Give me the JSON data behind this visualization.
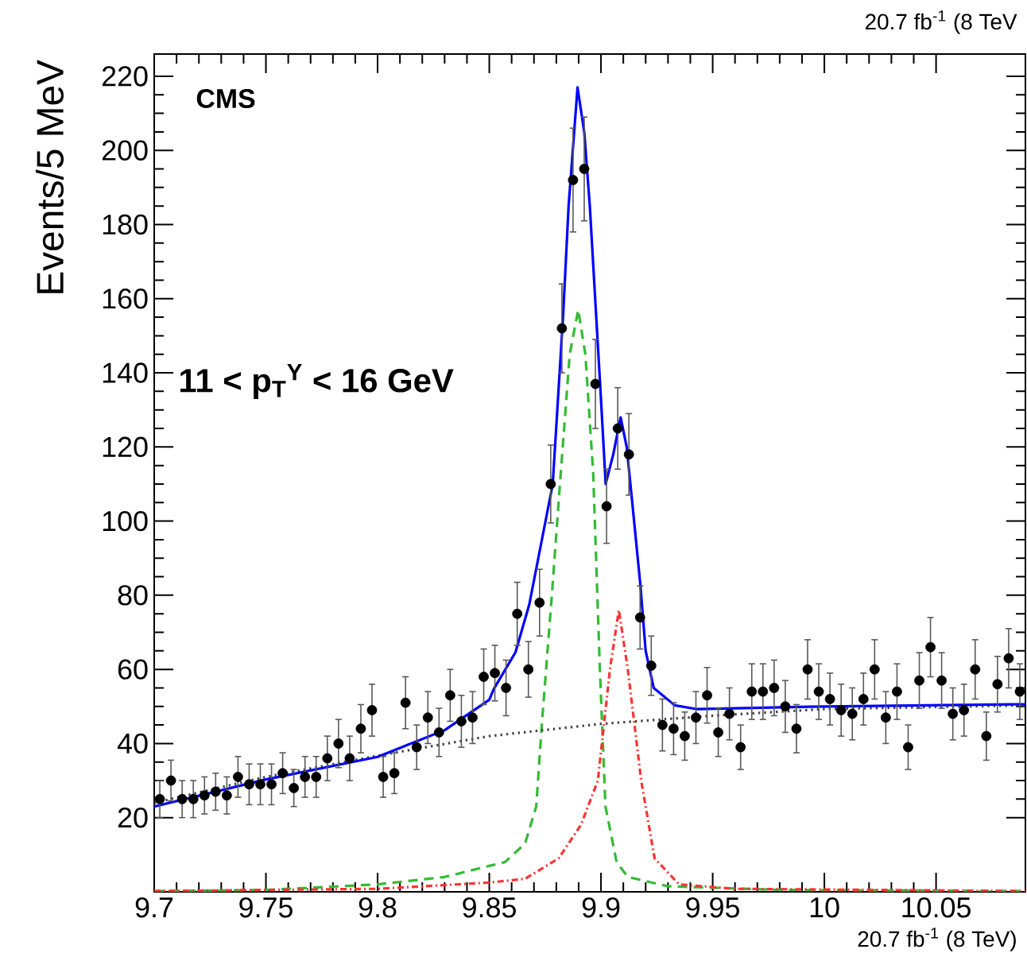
{
  "chart_data": {
    "type": "line",
    "ylabel": "Events/5 MeV",
    "annotations": [
      "CMS",
      "11 < p$_{T}$$^{Υ}$ < 16 GeV",
      "20.7 fb$^{-1}$ (8 TeV",
      "20.7 fb$^{-1}$ (8 TeV)"
    ],
    "xlim": [
      9.7,
      10.09
    ],
    "ylim": [
      0,
      226
    ],
    "xticks": [
      9.7,
      9.75,
      9.8,
      9.85,
      9.9,
      9.95,
      10,
      10.05
    ],
    "yticks": [
      20,
      40,
      60,
      80,
      100,
      120,
      140,
      160,
      180,
      200,
      220
    ],
    "series": [
      {
        "marker": "none",
        "color": "#33bb33",
        "line_style": "dashed",
        "x": [
          9.7,
          9.75,
          9.8,
          9.83,
          9.85,
          9.857,
          9.866,
          9.871,
          9.8735,
          9.878,
          9.882,
          9.886,
          9.8898,
          9.893,
          9.8965,
          9.8995,
          9.902,
          9.907,
          9.912,
          9.93,
          9.98,
          10.09
        ],
        "values": [
          0.2,
          0.5,
          2,
          4,
          7,
          8,
          13,
          23,
          45,
          80,
          113,
          145,
          157,
          145,
          113,
          60,
          23,
          8,
          4,
          1.5,
          0.5,
          0.2
        ]
      },
      {
        "type": "line",
        "marker": "none",
        "color": "#ff3333",
        "line_style": "dashdot",
        "x": [
          9.7,
          9.8,
          9.85,
          9.866,
          9.881,
          9.891,
          9.8986,
          9.904,
          9.908,
          9.912,
          9.918,
          9.924,
          9.935,
          9.96,
          10.09
        ],
        "values": [
          0.2,
          0.8,
          2.5,
          3.5,
          9,
          18,
          30,
          60,
          76,
          60,
          30,
          9,
          2,
          0.8,
          0.2
        ]
      },
      {
        "type": "line",
        "marker": "none",
        "color": "#444444",
        "line_style": "dotted",
        "x": [
          9.7,
          9.75,
          9.8,
          9.85,
          9.9,
          9.95,
          10.0,
          10.09
        ],
        "values": [
          24,
          31,
          36.7,
          42,
          45.3,
          47.5,
          49.3,
          50.3
        ]
      },
      {
        "type": "line",
        "marker": "none",
        "color": "#0000ff",
        "line_style": "solid",
        "x": [
          9.7,
          9.75,
          9.8,
          9.83,
          9.85,
          9.852,
          9.8617,
          9.8679,
          9.8784,
          9.8831,
          9.8855,
          9.8895,
          9.8925,
          9.895,
          9.8998,
          9.9021,
          9.9055,
          9.9088,
          9.9115,
          9.914,
          9.9176,
          9.92,
          9.9236,
          9.933,
          9.9426,
          10.0,
          10.09
        ],
        "values": [
          23,
          30.3,
          36.4,
          43.6,
          51.8,
          54.7,
          64.6,
          77.5,
          110,
          156,
          185,
          217,
          205,
          185,
          135,
          110,
          118,
          128,
          120,
          105,
          83,
          65,
          55,
          50.3,
          49.3,
          50,
          50.6
        ]
      },
      {
        "type": "scatter",
        "color": "#000000",
        "x": [
          9.7025,
          9.7075,
          9.7125,
          9.7175,
          9.7225,
          9.7275,
          9.7325,
          9.7375,
          9.7425,
          9.7475,
          9.7525,
          9.7575,
          9.7625,
          9.7675,
          9.7725,
          9.7775,
          9.7825,
          9.7875,
          9.7925,
          9.7975,
          9.8025,
          9.8075,
          9.8125,
          9.8175,
          9.8225,
          9.8275,
          9.8325,
          9.8375,
          9.8425,
          9.8475,
          9.8525,
          9.8575,
          9.8625,
          9.8675,
          9.8725,
          9.8775,
          9.8825,
          9.8875,
          9.8925,
          9.8975,
          9.9025,
          9.9075,
          9.9125,
          9.9175,
          9.9225,
          9.9275,
          9.9325,
          9.9375,
          9.9425,
          9.9475,
          9.9525,
          9.9575,
          9.9625,
          9.9675,
          9.9725,
          9.9775,
          9.9825,
          9.9875,
          9.9925,
          9.9975,
          10.0025,
          10.0075,
          10.0125,
          10.0175,
          10.0225,
          10.0275,
          10.0325,
          10.0375,
          10.0425,
          10.0475,
          10.0525,
          10.0575,
          10.0625,
          10.0675,
          10.0725,
          10.0775,
          10.0825,
          10.0875
        ],
        "values": [
          25,
          30,
          25,
          25,
          26,
          27,
          26,
          31,
          29,
          29,
          29,
          32,
          28,
          31,
          31,
          36,
          40,
          36,
          44,
          49,
          31,
          32,
          51,
          39,
          47,
          43,
          53,
          46,
          47,
          58,
          59,
          55,
          75,
          60,
          78,
          110,
          152,
          192,
          195,
          137,
          104,
          125,
          118,
          74,
          61,
          45,
          44,
          42,
          47,
          53,
          43,
          48,
          39,
          54,
          54,
          55,
          50,
          44,
          60,
          54,
          52,
          49,
          48,
          52,
          60,
          47,
          54,
          39,
          57,
          66,
          57,
          48,
          49,
          60,
          42,
          56,
          63,
          54
        ],
        "errors": [
          5,
          5.5,
          5,
          5,
          5,
          5,
          5,
          5.5,
          5.5,
          5.5,
          5.5,
          5.5,
          5,
          5.5,
          5.5,
          6,
          6.5,
          6,
          6.5,
          7,
          5.5,
          5.5,
          7,
          6,
          7,
          6.5,
          7,
          7,
          7,
          7.5,
          7.5,
          7.5,
          8.5,
          7.5,
          9,
          10.5,
          12,
          14,
          14,
          12,
          10,
          11,
          11,
          8.5,
          8,
          7,
          7,
          6.5,
          7,
          7.5,
          6.5,
          7,
          6,
          7.5,
          7.5,
          7.5,
          7,
          6.5,
          8,
          7.5,
          7,
          7,
          7,
          7,
          8,
          7,
          7.5,
          6,
          7.5,
          8,
          7.5,
          7,
          7,
          8,
          6.5,
          7.5,
          8,
          7.5
        ]
      }
    ]
  }
}
